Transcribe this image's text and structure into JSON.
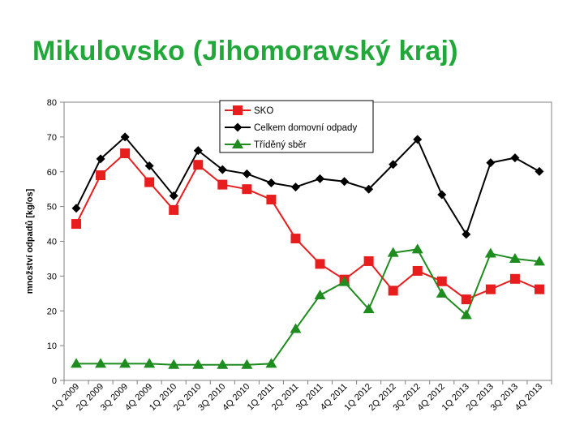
{
  "page": {
    "title": "Mikulovsko (Jihomoravský kraj)",
    "title_color": "#22a83a"
  },
  "chart_data": {
    "type": "line",
    "title": "",
    "xlabel": "",
    "ylabel": "množství odpadů [kg/os]",
    "ylim": [
      0,
      80
    ],
    "yticks": [
      0,
      10,
      20,
      30,
      40,
      50,
      60,
      70,
      80
    ],
    "grid": false,
    "legend_position": "top-center",
    "categories": [
      "1Q 2009",
      "2Q 2009",
      "3Q 2009",
      "4Q 2009",
      "1Q 2010",
      "2Q 2010",
      "3Q 2010",
      "4Q 2010",
      "1Q 2011",
      "2Q 2011",
      "3Q 2011",
      "4Q 2011",
      "1Q 2012",
      "2Q 2012",
      "3Q 2012",
      "4Q 2012",
      "1Q 2013",
      "2Q 2013",
      "3Q 2013",
      "4Q 2013"
    ],
    "series": [
      {
        "name": "SKO",
        "color": "#e81e1e",
        "marker": "square",
        "values": [
          45,
          59,
          65.3,
          57,
          49,
          62,
          56.3,
          55,
          52,
          40.8,
          33.5,
          29,
          34.3,
          25.8,
          31.5,
          28.5,
          23.3,
          26.2,
          29.2,
          26.2
        ]
      },
      {
        "name": "Celkem domovní odpady",
        "color": "#000000",
        "marker": "diamond",
        "values": [
          49.5,
          63.7,
          70,
          61.7,
          53.1,
          66.1,
          60.6,
          59.4,
          56.8,
          55.6,
          58,
          57.2,
          55,
          62.1,
          69.3,
          53.4,
          42,
          62.6,
          64,
          60.1
        ]
      },
      {
        "name": "Tříděný sběr",
        "color": "#1e8c1e",
        "marker": "triangle",
        "values": [
          4.8,
          4.8,
          4.8,
          4.8,
          4.5,
          4.5,
          4.5,
          4.5,
          4.8,
          14.8,
          24.5,
          28.3,
          20.5,
          36.7,
          37.7,
          25,
          18.8,
          36.5,
          35,
          34.2
        ]
      }
    ]
  }
}
